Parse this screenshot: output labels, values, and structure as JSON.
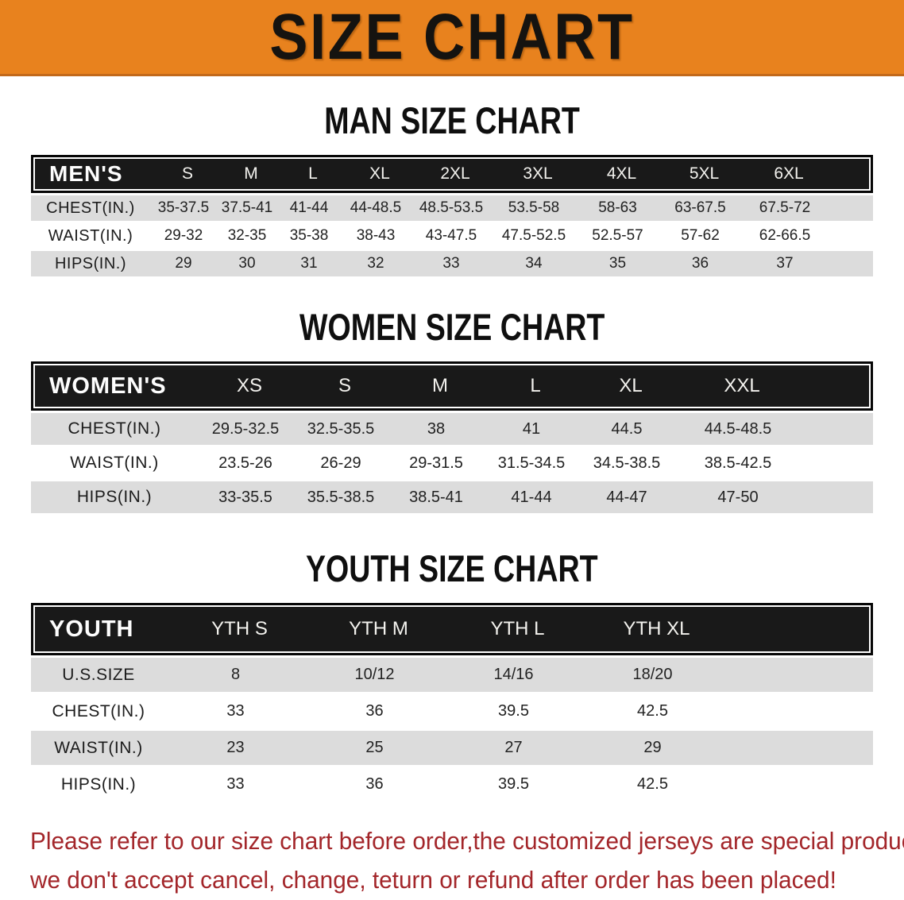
{
  "banner": {
    "title": "SIZE CHART",
    "bg_color": "#E8821E",
    "text_color": "#151310"
  },
  "sections": [
    {
      "heading": "MAN SIZE CHART",
      "table": {
        "name": "mens",
        "header_label": "MEN'S",
        "sizes": [
          "S",
          "M",
          "L",
          "XL",
          "2XL",
          "3XL",
          "4XL",
          "5XL",
          "6XL"
        ],
        "rows": [
          {
            "label": "CHEST(IN.)",
            "values": [
              "35-37.5",
              "37.5-41",
              "41-44",
              "44-48.5",
              "48.5-53.5",
              "53.5-58",
              "58-63",
              "63-67.5",
              "67.5-72"
            ]
          },
          {
            "label": "WAIST(IN.)",
            "values": [
              "29-32",
              "32-35",
              "35-38",
              "38-43",
              "43-47.5",
              "47.5-52.5",
              "52.5-57",
              "57-62",
              "62-66.5"
            ]
          },
          {
            "label": "HIPS(IN.)",
            "values": [
              "29",
              "30",
              "31",
              "32",
              "33",
              "34",
              "35",
              "36",
              "37"
            ]
          }
        ]
      }
    },
    {
      "heading": "WOMEN SIZE CHART",
      "table": {
        "name": "womens",
        "header_label": "WOMEN'S",
        "sizes": [
          "XS",
          "S",
          "M",
          "L",
          "XL",
          "XXL"
        ],
        "rows": [
          {
            "label": "CHEST(IN.)",
            "values": [
              "29.5-32.5",
              "32.5-35.5",
              "38",
              "41",
              "44.5",
              "44.5-48.5"
            ]
          },
          {
            "label": "WAIST(IN.)",
            "values": [
              "23.5-26",
              "26-29",
              "29-31.5",
              "31.5-34.5",
              "34.5-38.5",
              "38.5-42.5"
            ]
          },
          {
            "label": "HIPS(IN.)",
            "values": [
              "33-35.5",
              "35.5-38.5",
              "38.5-41",
              "41-44",
              "44-47",
              "47-50"
            ]
          }
        ]
      }
    },
    {
      "heading": "YOUTH SIZE CHART",
      "table": {
        "name": "youth",
        "header_label": "YOUTH",
        "sizes": [
          "YTH S",
          "YTH M",
          "YTH L",
          "YTH XL"
        ],
        "rows": [
          {
            "label": "U.S.SIZE",
            "values": [
              "8",
              "10/12",
              "14/16",
              "18/20"
            ]
          },
          {
            "label": "CHEST(IN.)",
            "values": [
              "33",
              "36",
              "39.5",
              "42.5"
            ]
          },
          {
            "label": "WAIST(IN.)",
            "values": [
              "23",
              "25",
              "27",
              "29"
            ]
          },
          {
            "label": "HIPS(IN.)",
            "values": [
              "33",
              "36",
              "39.5",
              "42.5"
            ]
          }
        ]
      }
    }
  ],
  "disclaimer": {
    "line1": "Please refer to our size chart before order,the customized jerseys are special products,",
    "line2": "we don't accept cancel, change, teturn or refund after order has been placed!",
    "color": "#A3262A"
  },
  "colors": {
    "header_band_bg": "#191919",
    "row_gray": "#DCDCDC",
    "row_white": "#FFFFFF",
    "body_text": "#222222"
  }
}
